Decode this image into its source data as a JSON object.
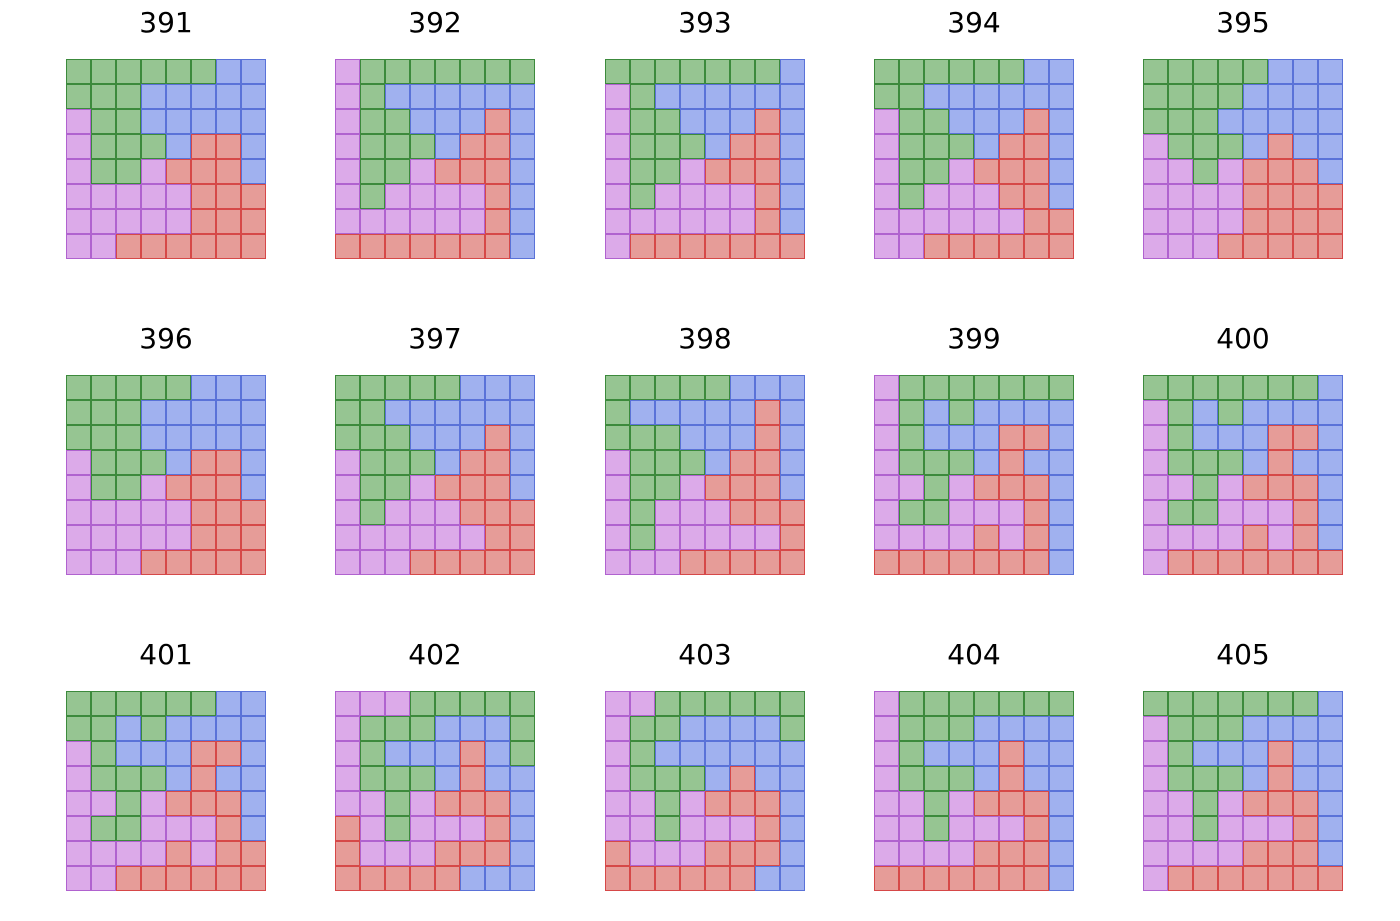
{
  "puzzles": [
    {
      "label": "391",
      "grid": [
        "GGGGGGBB",
        "GGGBBBBB",
        "PGGBBBBB",
        "PGGGBRRB",
        "PGGPRRRB",
        "PPPPPRRR",
        "PPPPPRRR",
        "PPRRRRRR"
      ]
    },
    {
      "label": "392",
      "grid": [
        "PGGGGGGG",
        "PGBBBBBB",
        "PGGBBBRB",
        "PGGGBRRB",
        "PGGPRRRB",
        "PGPPPPRB",
        "PPPPPPRB",
        "RRRRRRRB"
      ]
    },
    {
      "label": "393",
      "grid": [
        "GGGGGGGB",
        "PGBBBBBB",
        "PGGBBBRB",
        "PGGGBRRB",
        "PGGPRRRB",
        "PGPPPPRB",
        "PPPPPPRB",
        "PRRRRRRR"
      ]
    },
    {
      "label": "394",
      "grid": [
        "GGGGGGBB",
        "GGBBBBBB",
        "PGGBBBRB",
        "PGGGBRRB",
        "PGGPRRRB",
        "PGPPPRRB",
        "PPPPPPRR",
        "PPRRRRRR"
      ]
    },
    {
      "label": "395",
      "grid": [
        "GGGGGBBB",
        "GGGGBBBB",
        "GGGBBBBB",
        "PGGGBRBB",
        "PPGPRRRB",
        "PPPPRRRR",
        "PPPPRRRR",
        "PPPRRRRR"
      ]
    },
    {
      "label": "396",
      "grid": [
        "GGGGGBBB",
        "GGGBBBBB",
        "GGGBBBBB",
        "PGGGBRRB",
        "PGGPRRRB",
        "PPPPPRRR",
        "PPPPPRRR",
        "PPPRRRRR"
      ]
    },
    {
      "label": "397",
      "grid": [
        "GGGGGBBB",
        "GGBBBBBB",
        "GGGBBBRB",
        "PGGGBRRB",
        "PGGPRRRB",
        "PGPPPRRR",
        "PPPPPPRR",
        "PPPRRRRR"
      ]
    },
    {
      "label": "398",
      "grid": [
        "GGGGGBBB",
        "GBBBBBRB",
        "GGGBBBRB",
        "PGGGBRRB",
        "PGGPRRRB",
        "PGPPPRRR",
        "PGPPPPPR",
        "PPPRRRRR"
      ]
    },
    {
      "label": "399",
      "grid": [
        "PGGGGGGG",
        "PGBGBBBB",
        "PGBBBRRB",
        "PGGGBRBB",
        "PPGPRRRB",
        "PGGPPPRB",
        "PPPPRPRB",
        "RRRRRRRB"
      ]
    },
    {
      "label": "400",
      "grid": [
        "GGGGGGGB",
        "PGBGBBBB",
        "PGBBBRRB",
        "PGGGBRBB",
        "PPGPRRRB",
        "PGGPPPRB",
        "PPPPRPRB",
        "PRRRRRRR"
      ]
    },
    {
      "label": "401",
      "grid": [
        "GGGGGGBB",
        "GGBGBBBB",
        "PGBBBRRB",
        "PGGGBRBB",
        "PPGPRRRB",
        "PGGPPPRB",
        "PPPPRPRR",
        "PPRRRRRR"
      ]
    },
    {
      "label": "402",
      "grid": [
        "PPPGGGGG",
        "PGGGBBBG",
        "PGBBBRBG",
        "PGGGBRBB",
        "PPGPRRRB",
        "RPGPPPRB",
        "RPPPRRRB",
        "RRRRRBBB"
      ]
    },
    {
      "label": "403",
      "grid": [
        "PPGGGGGG",
        "PGGBBBBG",
        "PGBBBBBB",
        "PGGGBRBB",
        "PPGPRRRB",
        "PPGPPPRB",
        "RPPPRRRB",
        "RRRRRRBB"
      ]
    },
    {
      "label": "404",
      "grid": [
        "PGGGGGGG",
        "PGGGBBBB",
        "PGBBBRBB",
        "PGGGBRBB",
        "PPGPRRRB",
        "PPGPPPRB",
        "PPPPRRRB",
        "RRRRRRRB"
      ]
    },
    {
      "label": "405",
      "grid": [
        "GGGGGGGB",
        "PGGGBBBB",
        "PGBBBRBB",
        "PGGGBRBB",
        "PPGPRRRB",
        "PPGPPPRB",
        "PPPPRRRB",
        "PRRRRRRR"
      ]
    }
  ]
}
